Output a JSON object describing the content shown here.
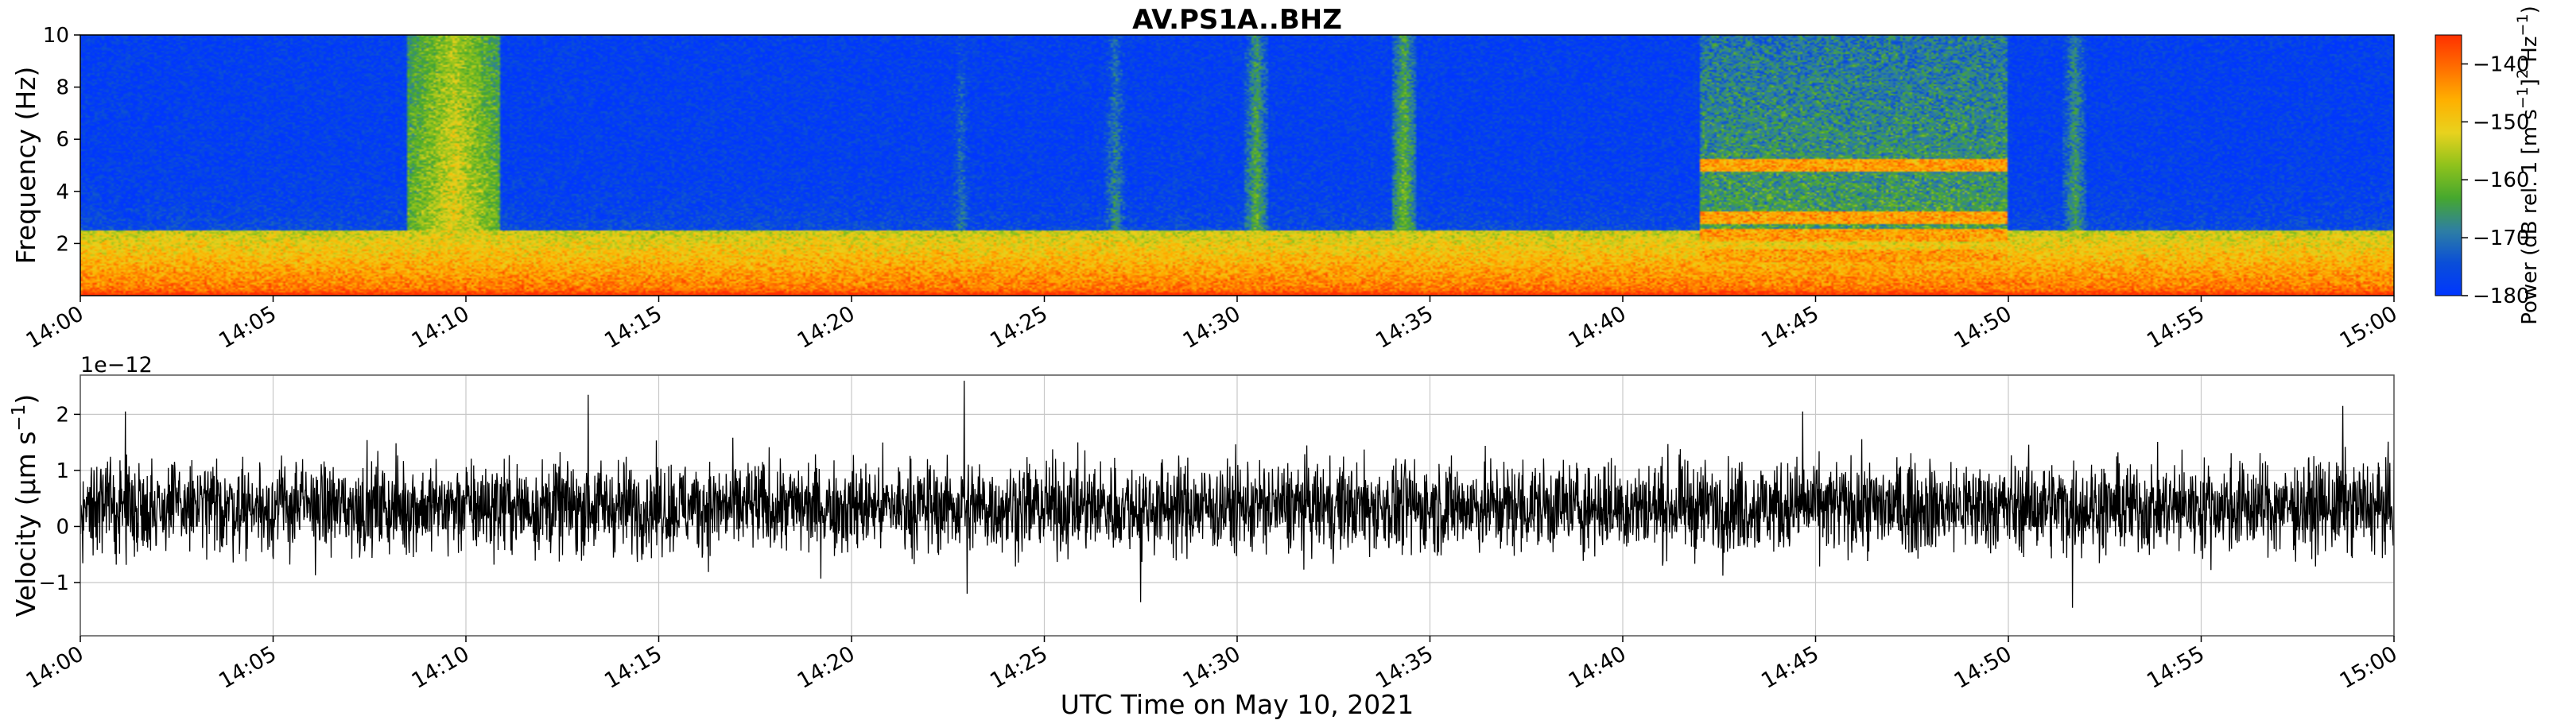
{
  "title": "AV.PS1A..BHZ",
  "colors": {
    "colormap": [
      "#0036ff",
      "#0a4ed8",
      "#2e7fa3",
      "#46a82e",
      "#8fc21c",
      "#e8d21e",
      "#ffb000",
      "#ff6e00",
      "#ff3000"
    ],
    "trace": "#000000",
    "grid": "#c8c8c8"
  },
  "chart_data": [
    {
      "type": "heatmap",
      "title": "AV.PS1A..BHZ",
      "xlabel": "",
      "ylabel": "Frequency (Hz)",
      "xlim": [
        "14:00",
        "15:00"
      ],
      "ylim": [
        0,
        10
      ],
      "x_ticks": [
        "14:00",
        "14:05",
        "14:10",
        "14:15",
        "14:20",
        "14:25",
        "14:30",
        "14:35",
        "14:40",
        "14:45",
        "14:50",
        "14:55",
        "15:00"
      ],
      "y_ticks": [
        2,
        4,
        6,
        8,
        10
      ],
      "colorbar": {
        "label_parts": [
          "Power (dB rel. 1 [m s",
          "−1",
          "]",
          "2",
          " Hz",
          "−1",
          ")"
        ],
        "range": [
          -180,
          -135
        ],
        "ticks": [
          -140,
          -150,
          -160,
          -170,
          -180
        ],
        "tick_labels": [
          "−140",
          "−150",
          "−160",
          "−170",
          "−180"
        ],
        "colormap": "blue-green-yellow-red"
      },
      "features": {
        "background_power_db": -180,
        "low_frequency_band": {
          "fmax_hz": 2.5,
          "power_db": -140
        },
        "broadband_events": [
          {
            "time": "14:09:40",
            "duration_min": 1.2,
            "power_db": -150
          },
          {
            "time": "14:22:50",
            "duration_min": 0.3,
            "power_db": -168
          },
          {
            "time": "14:26:50",
            "duration_min": 0.3,
            "power_db": -165
          },
          {
            "time": "14:30:30",
            "duration_min": 0.3,
            "power_db": -160
          },
          {
            "time": "14:34:20",
            "duration_min": 0.3,
            "power_db": -158
          },
          {
            "time": "14:51:45",
            "duration_min": 0.3,
            "power_db": -162
          }
        ],
        "tremor_interval": {
          "start": "14:42",
          "end": "14:50",
          "fmax_hz": 10,
          "power_db": -162
        },
        "harmonic_bands_hz": [
          1.5,
          2.3,
          3.0,
          5.0
        ]
      }
    },
    {
      "type": "line",
      "title": "",
      "xlabel": "UTC Time on May 10, 2021",
      "ylabel_parts": [
        "Velocity (μm s",
        "−1",
        ")"
      ],
      "offset_text": "1e−12",
      "xlim": [
        "14:00",
        "15:00"
      ],
      "ylim": [
        -1.95,
        2.7
      ],
      "x_ticks": [
        "14:00",
        "14:05",
        "14:10",
        "14:15",
        "14:20",
        "14:25",
        "14:30",
        "14:35",
        "14:40",
        "14:45",
        "14:50",
        "14:55",
        "15:00"
      ],
      "y_ticks": [
        -1,
        0,
        1,
        2
      ],
      "y_tick_labels": [
        "−1",
        "0",
        "1",
        "2"
      ],
      "grid": true,
      "series": [
        {
          "mean": 0.35,
          "typical_amplitude": 0.65,
          "peaks": [
            {
              "time": "14:13:10",
              "value": 2.35
            },
            {
              "time": "14:22:55",
              "value": 2.6
            },
            {
              "time": "14:44:40",
              "value": 2.05
            },
            {
              "time": "14:58:40",
              "value": 2.15
            },
            {
              "time": "14:01:10",
              "value": 2.05
            },
            {
              "time": "14:23:00",
              "value": -1.2
            },
            {
              "time": "14:51:40",
              "value": -1.45
            },
            {
              "time": "14:27:30",
              "value": -1.35
            }
          ]
        }
      ]
    }
  ]
}
